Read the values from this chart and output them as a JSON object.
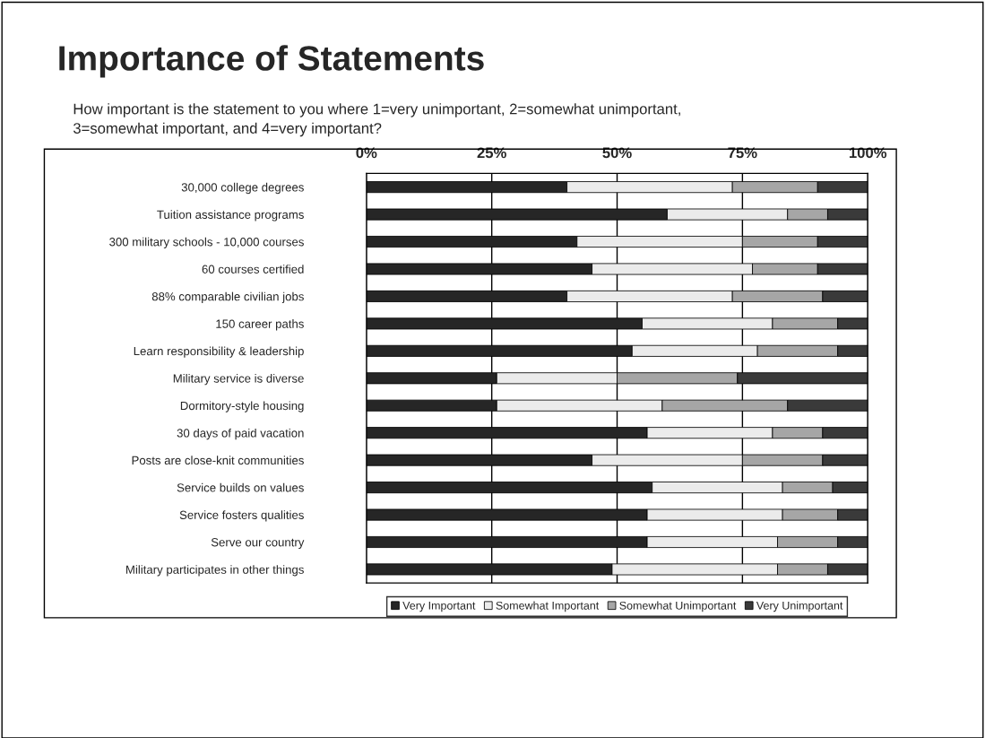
{
  "chart_data": {
    "type": "bar",
    "orientation": "horizontal",
    "stacked": true,
    "title": "Importance of Statements",
    "subtitle": "How important is the statement to you where 1=very unimportant, 2=somewhat unimportant,\n3=somewhat important, and 4=very important?",
    "categories": [
      "30,000 college degrees",
      "Tuition assistance programs",
      "300 military schools - 10,000 courses",
      "60 courses certified",
      "88% comparable civilian jobs",
      "150 career paths",
      "Learn responsibility & leadership",
      "Military service is diverse",
      "Dormitory-style housing",
      "30 days of paid vacation",
      "Posts are close-knit communities",
      "Service builds on values",
      "Service fosters qualities",
      "Serve our country",
      "Military participates in other things"
    ],
    "series": [
      {
        "name": "Very Important",
        "color": "#262626",
        "values": [
          40,
          60,
          42,
          45,
          40,
          55,
          53,
          26,
          26,
          56,
          45,
          57,
          56,
          56,
          49
        ]
      },
      {
        "name": "Somewhat Important",
        "color": "#ebebeb",
        "values": [
          33,
          24,
          33,
          32,
          33,
          26,
          25,
          24,
          33,
          25,
          30,
          26,
          27,
          26,
          33
        ]
      },
      {
        "name": "Somewhat Unimportant",
        "color": "#a6a6a6",
        "values": [
          17,
          8,
          15,
          13,
          18,
          13,
          16,
          24,
          25,
          10,
          16,
          10,
          11,
          12,
          10
        ]
      },
      {
        "name": "Very Unimportant",
        "color": "#3a3a3a",
        "values": [
          10,
          8,
          10,
          10,
          9,
          6,
          6,
          26,
          16,
          9,
          9,
          7,
          6,
          6,
          8
        ]
      }
    ],
    "xlim": [
      0,
      100
    ],
    "xticks": [
      {
        "value": 0,
        "label": "0%"
      },
      {
        "value": 25,
        "label": "25%"
      },
      {
        "value": 50,
        "label": "50%"
      },
      {
        "value": 75,
        "label": "75%"
      },
      {
        "value": 100,
        "label": "100%"
      }
    ],
    "grid": "x",
    "legend": "bottom"
  }
}
